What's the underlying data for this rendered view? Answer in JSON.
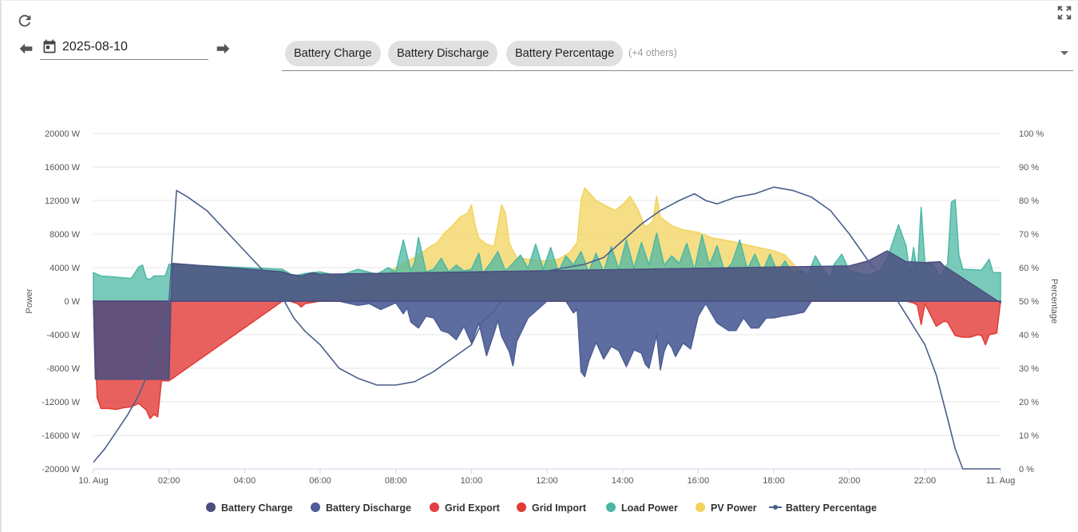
{
  "toolbar": {
    "date_value": "2025-08-10",
    "chips": [
      "Battery Charge",
      "Battery Discharge",
      "Battery Percentage"
    ],
    "others_label": "(+4 others)"
  },
  "chart_data": {
    "type": "area",
    "ylabel_left": "Power",
    "ylabel_right": "Percentage",
    "y_left_range": [
      -20000,
      20000
    ],
    "y_left_ticks": [
      "20000 W",
      "16000 W",
      "12000 W",
      "8000 W",
      "4000 W",
      "0 W",
      "-4000 W",
      "-8000 W",
      "-12000 W",
      "-16000 W",
      "-20000 W"
    ],
    "y_right_range": [
      0,
      100
    ],
    "y_right_ticks": [
      "100 %",
      "90 %",
      "80 %",
      "70 %",
      "60 %",
      "50 %",
      "40 %",
      "30 %",
      "20 %",
      "10 %",
      "0 %"
    ],
    "x_range_hours": [
      0,
      24
    ],
    "x_ticks": [
      "10. Aug",
      "02:00",
      "04:00",
      "06:00",
      "08:00",
      "10:00",
      "12:00",
      "14:00",
      "16:00",
      "18:00",
      "20:00",
      "22:00",
      "11. Aug"
    ],
    "legend": [
      "Battery Charge",
      "Battery Discharge",
      "Grid Export",
      "Grid Import",
      "Load Power",
      "PV Power",
      "Battery Percentage"
    ],
    "colors": {
      "battery_charge": "#4a4f7f",
      "battery_discharge": "#4d5d95",
      "grid_export": "#e04040",
      "grid_import": "#e23a36",
      "load_power": "#4cb8a4",
      "pv_power": "#f2d35c",
      "battery_percentage": "#4a5f8c"
    },
    "series": [
      {
        "name": "PV Power",
        "unit": "W",
        "x": [
          0,
          5,
          5.5,
          6,
          6.5,
          7,
          7.5,
          8,
          8.3,
          8.5,
          8.7,
          8.9,
          9.1,
          9.3,
          9.5,
          9.7,
          9.9,
          10.0,
          10.1,
          10.2,
          10.4,
          10.6,
          10.7,
          10.8,
          10.9,
          11.0,
          11.1,
          11.2,
          11.5,
          12,
          12.3,
          12.6,
          12.8,
          12.9,
          13.0,
          13.1,
          13.3,
          13.5,
          13.8,
          14.0,
          14.2,
          14.4,
          14.6,
          14.8,
          14.9,
          15.0,
          15.3,
          15.6,
          16.0,
          16.4,
          16.8,
          17.2,
          17.6,
          18.0,
          18.3,
          18.6,
          18.8,
          19.0,
          19.5,
          20,
          24
        ],
        "values": [
          0,
          0,
          0,
          100,
          500,
          1200,
          2500,
          4000,
          4800,
          5200,
          5800,
          6500,
          7000,
          8200,
          9000,
          10000,
          10500,
          11500,
          9000,
          7500,
          6800,
          6500,
          9000,
          11500,
          10500,
          7000,
          6000,
          5200,
          5000,
          4800,
          5000,
          5800,
          7000,
          12000,
          13500,
          13000,
          12000,
          11500,
          10800,
          11500,
          12500,
          11000,
          8800,
          9500,
          12500,
          10000,
          9000,
          8500,
          8200,
          7500,
          7200,
          6800,
          6400,
          6000,
          5500,
          4000,
          2500,
          1500,
          600,
          0,
          0
        ]
      },
      {
        "name": "Load Power",
        "unit": "W",
        "x": [
          0,
          0.2,
          0.5,
          1.0,
          1.2,
          1.3,
          1.4,
          1.5,
          1.6,
          1.9,
          2.0,
          5.0,
          5.3,
          5.6,
          6.0,
          6.5,
          7.0,
          7.5,
          7.8,
          8.0,
          8.2,
          8.4,
          8.5,
          8.6,
          8.8,
          9.0,
          9.2,
          9.4,
          9.6,
          9.8,
          10.0,
          10.2,
          10.3,
          10.5,
          10.7,
          10.9,
          11.1,
          11.3,
          11.5,
          11.7,
          11.9,
          12.1,
          12.3,
          12.5,
          12.7,
          12.9,
          13.1,
          13.3,
          13.5,
          13.7,
          13.9,
          14.1,
          14.3,
          14.5,
          14.7,
          14.9,
          15.1,
          15.3,
          15.5,
          15.7,
          15.9,
          16.1,
          16.3,
          16.5,
          16.7,
          16.9,
          17.1,
          17.3,
          17.5,
          17.7,
          17.9,
          18.1,
          18.3,
          18.5,
          18.7,
          18.9,
          19.1,
          19.3,
          19.5,
          19.6,
          19.8,
          20.0,
          20.5,
          20.8,
          21.0,
          21.3,
          21.5,
          21.6,
          21.7,
          21.8,
          21.9,
          22.0,
          22.2,
          22.4,
          22.6,
          22.7,
          22.8,
          22.9,
          23.0,
          23.5,
          23.7,
          23.8,
          24
        ],
        "values": [
          3400,
          3000,
          2900,
          2700,
          4100,
          4300,
          2700,
          2600,
          3000,
          3000,
          4400,
          3800,
          3000,
          3300,
          3500,
          3000,
          3800,
          3200,
          4000,
          3500,
          7300,
          3600,
          4600,
          7600,
          3500,
          3800,
          5100,
          3500,
          4300,
          3600,
          3800,
          5700,
          3300,
          4500,
          5900,
          3600,
          4500,
          5500,
          3900,
          6800,
          3800,
          6400,
          3500,
          5400,
          4300,
          5900,
          3500,
          5700,
          3500,
          6500,
          3800,
          7300,
          3900,
          7000,
          4300,
          8100,
          4300,
          5400,
          4500,
          6900,
          3700,
          7900,
          4300,
          6600,
          3500,
          4600,
          7300,
          3800,
          5600,
          3500,
          5600,
          3500,
          4800,
          3300,
          3700,
          3100,
          5400,
          3800,
          2700,
          4400,
          5600,
          3600,
          3100,
          3600,
          5000,
          9100,
          6600,
          3200,
          6400,
          3400,
          11200,
          4500,
          4500,
          2900,
          4500,
          11800,
          12100,
          5500,
          3800,
          3700,
          5000,
          3400,
          3400
        ]
      },
      {
        "name": "Grid Import",
        "unit": "W",
        "x": [
          0,
          0.1,
          0.2,
          0.4,
          0.6,
          0.8,
          1.0,
          1.2,
          1.4,
          1.5,
          1.6,
          1.7,
          1.8,
          1.9,
          2.0,
          5.0,
          5.2,
          5.4,
          5.5,
          5.6,
          6.0,
          21.5,
          21.7,
          21.8,
          21.9,
          22.0,
          22.3,
          22.5,
          22.6,
          22.8,
          23.0,
          23.2,
          23.4,
          23.5,
          23.6,
          23.7,
          23.8,
          23.9,
          24
        ],
        "values": [
          0,
          -11500,
          -12800,
          -12800,
          -12900,
          -12700,
          -12600,
          -12200,
          -13000,
          -14000,
          -13500,
          -13800,
          -9500,
          -9500,
          -9500,
          0,
          0,
          -300,
          -700,
          -300,
          0,
          0,
          -200,
          -500,
          -2800,
          -300,
          -3000,
          -2400,
          -2500,
          -4100,
          -4300,
          -4300,
          -4000,
          -4100,
          -5200,
          -4000,
          -3900,
          -3800,
          0
        ]
      },
      {
        "name": "Battery Discharge",
        "unit": "W",
        "x": [
          0,
          6.5,
          7.0,
          7.3,
          7.6,
          7.8,
          7.9,
          8.0,
          8.2,
          8.3,
          8.4,
          8.6,
          8.8,
          9.0,
          9.2,
          9.4,
          9.6,
          9.8,
          10.0,
          10.2,
          10.4,
          10.6,
          10.7,
          10.8,
          10.9,
          11.0,
          11.1,
          11.2,
          11.5,
          12,
          12.5,
          12.7,
          12.8,
          12.9,
          13.0,
          13.1,
          13.3,
          13.5,
          13.7,
          13.9,
          14.1,
          14.3,
          14.5,
          14.6,
          14.7,
          14.9,
          15.0,
          15.1,
          15.2,
          15.3,
          15.4,
          15.6,
          15.8,
          16.0,
          16.2,
          16.5,
          16.8,
          17.0,
          17.2,
          17.4,
          17.6,
          17.8,
          18.0,
          18.2,
          18.5,
          18.8,
          19,
          20,
          24
        ],
        "values": [
          0,
          0,
          -500,
          -300,
          -1000,
          -600,
          -400,
          -200,
          -1500,
          -800,
          -2500,
          -3200,
          -1800,
          -2000,
          -3500,
          -3800,
          -4600,
          -3000,
          -5000,
          -2600,
          -6500,
          -3800,
          -2300,
          -4200,
          -5100,
          -6000,
          -7700,
          -4800,
          -2000,
          0,
          0,
          -1400,
          -1000,
          -8400,
          -9000,
          -7200,
          -4900,
          -6900,
          -5400,
          -5900,
          -7800,
          -5800,
          -6200,
          -7500,
          -8000,
          -4000,
          -8200,
          -6000,
          -4900,
          -5500,
          -6600,
          -5000,
          -5700,
          -1800,
          -300,
          -2600,
          -3500,
          -3500,
          -2000,
          -3200,
          -3200,
          -2000,
          -2000,
          -1800,
          -1600,
          -1300,
          0,
          0,
          0
        ]
      },
      {
        "name": "Battery Charge",
        "unit": "W",
        "x": [
          0,
          0.05,
          2.0,
          2.05,
          2.1,
          5.0,
          5.2,
          5.5,
          5.8,
          6.0,
          20,
          20.5,
          21,
          21.5,
          22,
          22.4,
          22.5,
          24
        ],
        "values": [
          0,
          -9300,
          -9300,
          0,
          4500,
          3500,
          3200,
          3000,
          3400,
          3200,
          4200,
          4800,
          6000,
          4700,
          4600,
          4700,
          4200,
          -200
        ]
      },
      {
        "name": "Battery Percentage",
        "unit": "%",
        "x": [
          0,
          0.3,
          0.6,
          0.9,
          1.2,
          1.5,
          1.8,
          2.0,
          2.2,
          2.5,
          3.0,
          3.5,
          4.0,
          4.5,
          5.0,
          5.3,
          5.6,
          6.0,
          6.5,
          7.0,
          7.5,
          8.0,
          8.5,
          9.0,
          9.5,
          10.0,
          10.3,
          10.6,
          10.9,
          11.2,
          11.5,
          12.0,
          12.5,
          13.0,
          13.5,
          14.0,
          14.5,
          15.0,
          15.5,
          15.9,
          16.2,
          16.5,
          17.0,
          17.5,
          18.0,
          18.5,
          19.0,
          19.5,
          20.0,
          20.5,
          21.0,
          21.5,
          22.0,
          22.3,
          22.6,
          22.8,
          23.0,
          23.2,
          23.5,
          24
        ],
        "values": [
          2,
          6,
          11,
          16,
          22,
          30,
          40,
          50,
          83,
          81,
          77,
          71,
          65,
          59,
          51,
          45,
          41,
          37,
          30,
          27,
          25,
          25,
          26,
          29,
          33,
          37,
          44,
          47,
          52,
          57,
          58,
          59,
          60,
          61,
          63,
          68,
          73,
          77,
          80,
          82,
          80,
          79,
          81,
          82,
          84,
          83,
          81,
          77,
          70,
          62,
          55,
          46,
          37,
          28,
          15,
          6,
          0,
          0,
          0,
          0
        ]
      }
    ]
  }
}
